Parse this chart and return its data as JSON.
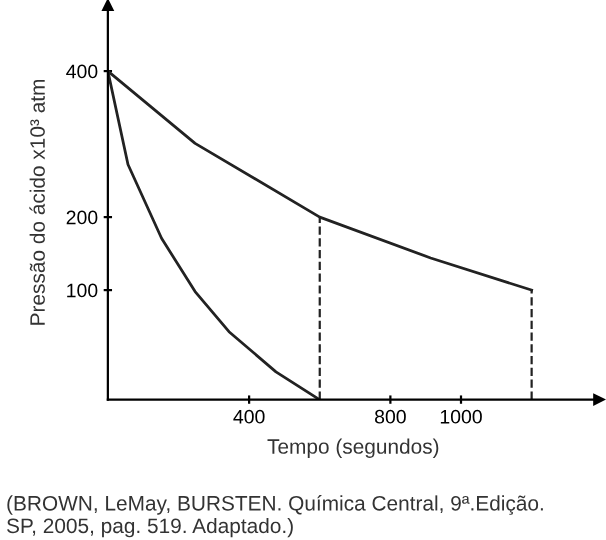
{
  "chart_data": {
    "type": "line",
    "xlabel": "Tempo (segundos)",
    "ylabel": "Pressão do ácido x10³ atm",
    "series": [
      {
        "color": "#222222",
        "x": [
          0,
          247,
          600,
          914,
          1200
        ],
        "values": [
          400,
          301,
          200,
          144,
          100
        ]
      },
      {
        "color": "#222222",
        "x": [
          0,
          57,
          152,
          247,
          343,
          476,
          596
        ],
        "values": [
          400,
          272,
          171,
          98,
          43,
          -12,
          -49
        ]
      }
    ],
    "xlim": [
      0,
      1390
    ],
    "ylim": [
      -50,
      490
    ],
    "xticks": [
      400,
      800,
      1000
    ],
    "yticks": [
      100,
      200,
      400
    ],
    "ref_lines": [
      {
        "axis": "x",
        "value": 600,
        "line_style": "dashed",
        "color": "#222222"
      },
      {
        "axis": "x",
        "value": 1200,
        "line_style": "dashed",
        "color": "#222222"
      }
    ],
    "grid": false,
    "legend": false,
    "annotations": [
      "(BROWN, LeMay, BURSTEN. Química Central, 9ª.Edição.\nSP, 2005, pag. 519. Adaptado.)"
    ]
  }
}
